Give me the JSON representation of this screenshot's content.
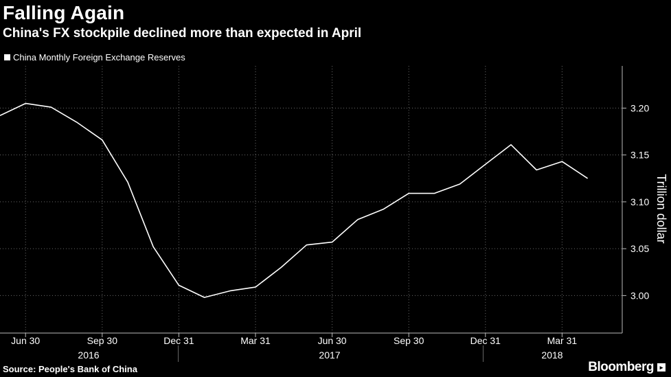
{
  "header": {
    "title": "Falling Again",
    "subtitle": "China's FX stockpile declined more than expected in April"
  },
  "legend": {
    "label": "China Monthly Foreign Exchange Reserves"
  },
  "footer": {
    "source": "Source: People's Bank of China",
    "brand": "Bloomberg"
  },
  "chart_data": {
    "type": "line",
    "title": "Falling Again",
    "subtitle": "China's FX stockpile declined more than expected in April",
    "ylabel": "Trillion dollar",
    "xlabel": "",
    "ylim": [
      2.96,
      3.245
    ],
    "yticks": [
      3.0,
      3.05,
      3.1,
      3.15,
      3.2
    ],
    "ytick_labels": [
      "3.00",
      "3.05",
      "3.10",
      "3.15",
      "3.20"
    ],
    "x_tick_labels": [
      "Jun 30",
      "Sep 30",
      "Dec 31",
      "Mar 31",
      "Jun 30",
      "Sep 30",
      "Dec 31",
      "Mar 31"
    ],
    "year_labels": [
      "2016",
      "2017",
      "2018"
    ],
    "series": [
      {
        "name": "China Monthly Foreign Exchange Reserves",
        "color": "#ffffff",
        "x": [
          "2016-05",
          "2016-06",
          "2016-07",
          "2016-08",
          "2016-09",
          "2016-10",
          "2016-11",
          "2016-12",
          "2017-01",
          "2017-02",
          "2017-03",
          "2017-04",
          "2017-05",
          "2017-06",
          "2017-07",
          "2017-08",
          "2017-09",
          "2017-10",
          "2017-11",
          "2017-12",
          "2018-01",
          "2018-02",
          "2018-03",
          "2018-04"
        ],
        "values": [
          3.192,
          3.205,
          3.201,
          3.185,
          3.166,
          3.121,
          3.052,
          3.011,
          2.998,
          3.005,
          3.009,
          3.03,
          3.054,
          3.057,
          3.081,
          3.092,
          3.109,
          3.109,
          3.119,
          3.14,
          3.161,
          3.134,
          3.143,
          3.125
        ]
      }
    ]
  }
}
